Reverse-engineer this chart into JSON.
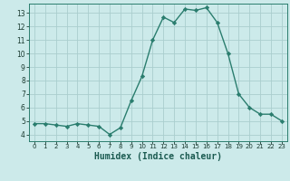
{
  "x": [
    0,
    1,
    2,
    3,
    4,
    5,
    6,
    7,
    8,
    9,
    10,
    11,
    12,
    13,
    14,
    15,
    16,
    17,
    18,
    19,
    20,
    21,
    22,
    23
  ],
  "y": [
    4.8,
    4.8,
    4.7,
    4.6,
    4.8,
    4.7,
    4.6,
    4.0,
    4.5,
    6.5,
    8.3,
    11.0,
    12.7,
    12.3,
    13.3,
    13.2,
    13.4,
    12.3,
    10.0,
    7.0,
    6.0,
    5.5,
    5.5,
    5.0
  ],
  "line_color": "#2a7d6e",
  "marker_color": "#2a7d6e",
  "bg_color": "#cceaea",
  "grid_color": "#aacece",
  "xlabel": "Humidex (Indice chaleur)",
  "ylim": [
    3.5,
    13.7
  ],
  "xlim": [
    -0.5,
    23.5
  ],
  "yticks": [
    4,
    5,
    6,
    7,
    8,
    9,
    10,
    11,
    12,
    13
  ],
  "xtick_labels": [
    "0",
    "1",
    "2",
    "3",
    "4",
    "5",
    "6",
    "7",
    "8",
    "9",
    "10",
    "11",
    "12",
    "13",
    "14",
    "15",
    "16",
    "17",
    "18",
    "19",
    "20",
    "21",
    "22",
    "23"
  ]
}
